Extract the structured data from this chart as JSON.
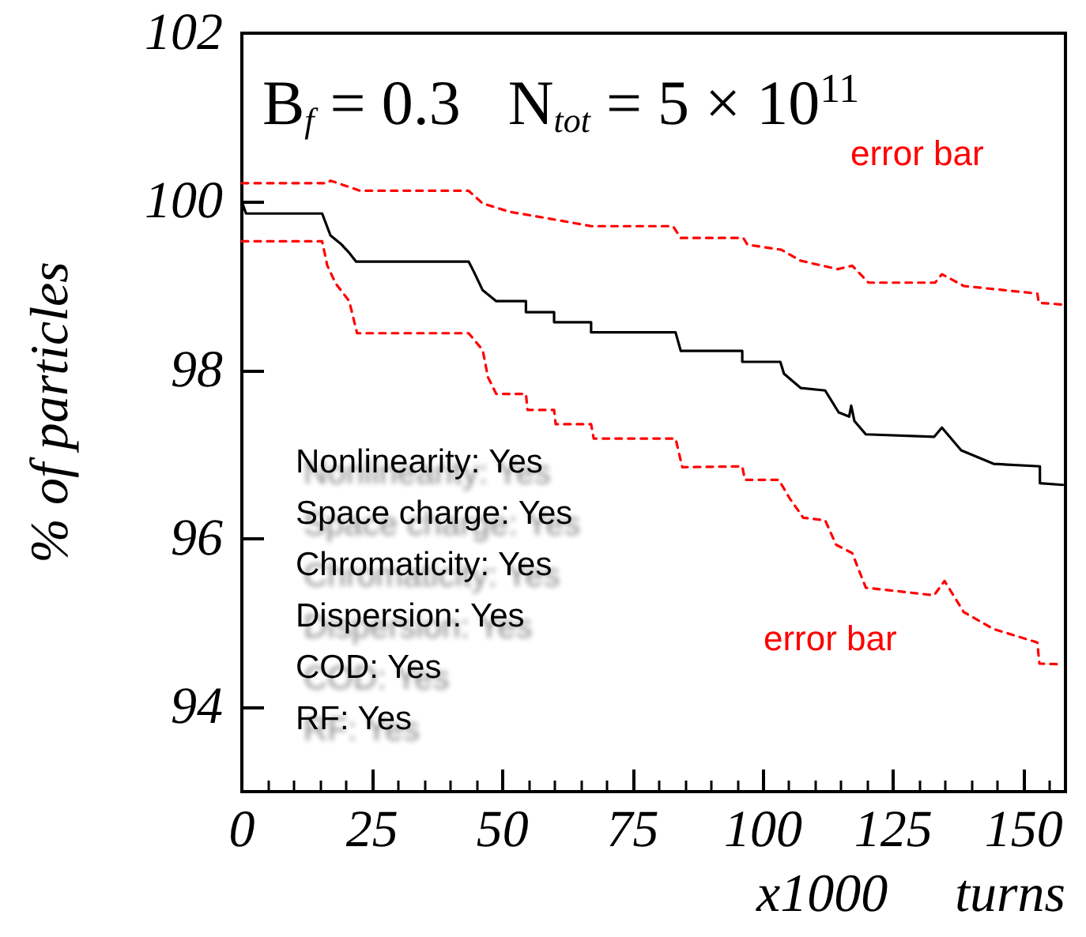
{
  "chart_data": {
    "type": "line",
    "title": "B$_{f}$ = 0.3   N$_{tot}$ = 5 × 10$^{11}$",
    "xlabel": "x1000     turns",
    "ylabel": "% of particles",
    "xlim": [
      0,
      158
    ],
    "xticks": [
      0,
      25,
      50,
      75,
      100,
      125,
      150
    ],
    "ylim": [
      93,
      102
    ],
    "yticks": [
      94,
      96,
      98,
      100,
      102
    ],
    "grid": false,
    "marker": "none",
    "series": [
      {
        "color": "#000000",
        "line_style": "solid",
        "x": [
          0,
          0.8,
          15.4,
          17,
          19,
          20.5,
          21.9,
          43.5,
          44.5,
          46.2,
          48.8,
          54.5,
          54.5,
          59.9,
          59.9,
          67.0,
          67.0,
          83.2,
          84.2,
          96.0,
          96.0,
          103.3,
          104,
          107.2,
          111.9,
          114.5,
          116.5,
          116.9,
          117.5,
          119.7,
          132.8,
          134.3,
          138.0,
          144.2,
          153.1,
          153.1,
          157.5
        ],
        "values": [
          100,
          99.86,
          99.86,
          99.6,
          99.5,
          99.4,
          99.29,
          99.29,
          99.17,
          98.95,
          98.82,
          98.82,
          98.69,
          98.69,
          98.57,
          98.57,
          98.45,
          98.45,
          98.23,
          98.23,
          98.1,
          98.1,
          97.96,
          97.79,
          97.76,
          97.5,
          97.45,
          97.58,
          97.4,
          97.24,
          97.21,
          97.32,
          97.05,
          96.89,
          96.86,
          96.66,
          96.64
        ]
      },
      {
        "color": "#ff0000",
        "line_style": "dashed",
        "x": [
          0,
          16.4,
          17,
          22.7,
          43.5,
          46.2,
          51.4,
          60.8,
          67.0,
          82.7,
          84.2,
          96.2,
          97,
          103.5,
          107.2,
          114.3,
          117.1,
          120.2,
          133.0,
          134.3,
          138.5,
          152.6,
          152.9,
          157.5
        ],
        "values": [
          100.22,
          100.22,
          100.25,
          100.13,
          100.13,
          99.98,
          99.88,
          99.78,
          99.71,
          99.71,
          99.57,
          99.57,
          99.49,
          99.43,
          99.3,
          99.2,
          99.24,
          99.04,
          99.04,
          99.14,
          99.0,
          98.91,
          98.8,
          98.78
        ]
      },
      {
        "color": "#ff0000",
        "line_style": "dashed",
        "x": [
          0,
          15.4,
          16.4,
          18.0,
          20.6,
          22.1,
          43.5,
          46.2,
          47.2,
          48.8,
          54.5,
          54.8,
          59.9,
          60.2,
          67.0,
          67.5,
          83.2,
          84.5,
          96.0,
          96.5,
          103.0,
          105.1,
          107.7,
          111.9,
          114.0,
          117.1,
          119.7,
          132.8,
          134.8,
          138.5,
          144.2,
          152.6,
          153,
          157.5
        ],
        "values": [
          99.53,
          99.53,
          99.24,
          99.03,
          98.82,
          98.44,
          98.44,
          98.24,
          97.92,
          97.72,
          97.72,
          97.53,
          97.53,
          97.36,
          97.36,
          97.19,
          97.19,
          96.85,
          96.86,
          96.7,
          96.7,
          96.48,
          96.25,
          96.22,
          95.93,
          95.83,
          95.42,
          95.33,
          95.5,
          95.13,
          94.93,
          94.77,
          94.52,
          94.51
        ]
      }
    ],
    "annotations": [
      "error bar",
      "error bar",
      "Nonlinearity: Yes",
      "Space charge: Yes",
      "Chromaticity: Yes",
      "Dispersion: Yes",
      "COD: Yes",
      "RF: Yes"
    ]
  }
}
